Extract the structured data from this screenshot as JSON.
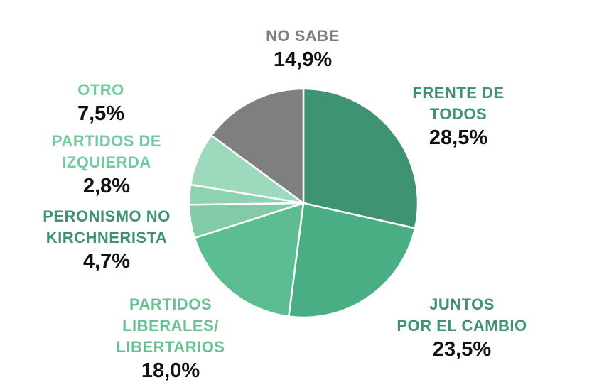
{
  "chart_data": {
    "type": "pie",
    "categories": [
      "FRENTE DE TODOS",
      "JUNTOS POR EL CAMBIO",
      "PARTIDOS LIBERALES/ LIBERTARIOS",
      "PERONISMO NO KIRCHNERISTA",
      "PARTIDOS DE IZQUIERDA",
      "OTRO",
      "NO SABE"
    ],
    "values": [
      28.5,
      23.5,
      18.0,
      4.7,
      2.8,
      7.5,
      14.9
    ],
    "value_labels": [
      "28,5%",
      "23,5%",
      "18,0%",
      "4,7%",
      "2,8%",
      "7,5%",
      "14,9%"
    ],
    "colors": [
      "#3e9370",
      "#4aae85",
      "#5cbd93",
      "#82cba9",
      "#8dd3b2",
      "#9dd9bd",
      "#7f7f7f"
    ],
    "label_colors": [
      "#3e9370",
      "#3e9370",
      "#67c193",
      "#3e9370",
      "#74c9a0",
      "#74c9a0",
      "#7f7f7f"
    ],
    "title": ""
  },
  "labels": [
    {
      "name_lines": [
        "FRENTE DE",
        "TODOS"
      ],
      "pct": "28,5%"
    },
    {
      "name_lines": [
        "JUNTOS",
        "POR EL CAMBIO"
      ],
      "pct": "23,5%"
    },
    {
      "name_lines": [
        "PARTIDOS",
        "LIBERALES/",
        "LIBERTARIOS"
      ],
      "pct": "18,0%"
    },
    {
      "name_lines": [
        "PERONISMO NO",
        "KIRCHNERISTA"
      ],
      "pct": "4,7%"
    },
    {
      "name_lines": [
        "PARTIDOS DE",
        "IZQUIERDA"
      ],
      "pct": "2,8%"
    },
    {
      "name_lines": [
        "OTRO"
      ],
      "pct": "7,5%"
    },
    {
      "name_lines": [
        "NO SABE"
      ],
      "pct": "14,9%"
    }
  ]
}
